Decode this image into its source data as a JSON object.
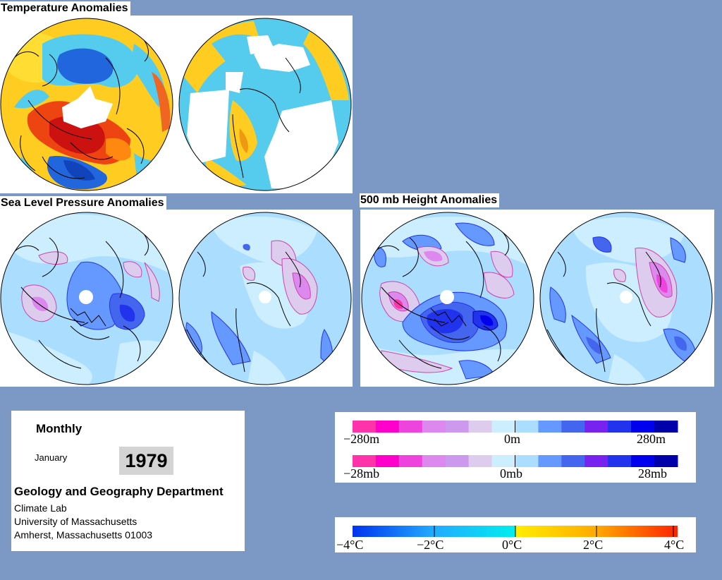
{
  "sections": {
    "temperature_title": "Temperature Anomalies",
    "slp_title": "Sea Level Pressure Anomalies",
    "height_title": "500 mb Height Anomalies"
  },
  "info": {
    "period_type": "Monthly",
    "month": "January",
    "year": "1979",
    "department": "Geology and Geography Department",
    "lab": "Climate Lab",
    "university": "University of Massachusetts",
    "address": "Amherst, Massachusetts 01003"
  },
  "legends": {
    "height": {
      "min_label": "−280m",
      "mid_label": "0m",
      "max_label": "280m",
      "colors": [
        "#ff33aa",
        "#ff00cc",
        "#ee44dd",
        "#dd88ee",
        "#cc99ee",
        "#ddccee",
        "#cceeff",
        "#aaddff",
        "#6699ff",
        "#4466ee",
        "#7722ee",
        "#2233ee",
        "#0000ee",
        "#0000aa"
      ]
    },
    "pressure": {
      "min_label": "−28mb",
      "mid_label": "0mb",
      "max_label": "28mb",
      "colors": [
        "#ff33aa",
        "#ff00cc",
        "#ee44dd",
        "#dd88ee",
        "#cc99ee",
        "#ddccee",
        "#cceeff",
        "#aaddff",
        "#6699ff",
        "#4466ee",
        "#7722ee",
        "#2233ee",
        "#0000ee",
        "#0000aa"
      ]
    },
    "temperature": {
      "labels": [
        "−4°C",
        "−2°C",
        "0°C",
        "2°C",
        "4°C"
      ]
    }
  }
}
